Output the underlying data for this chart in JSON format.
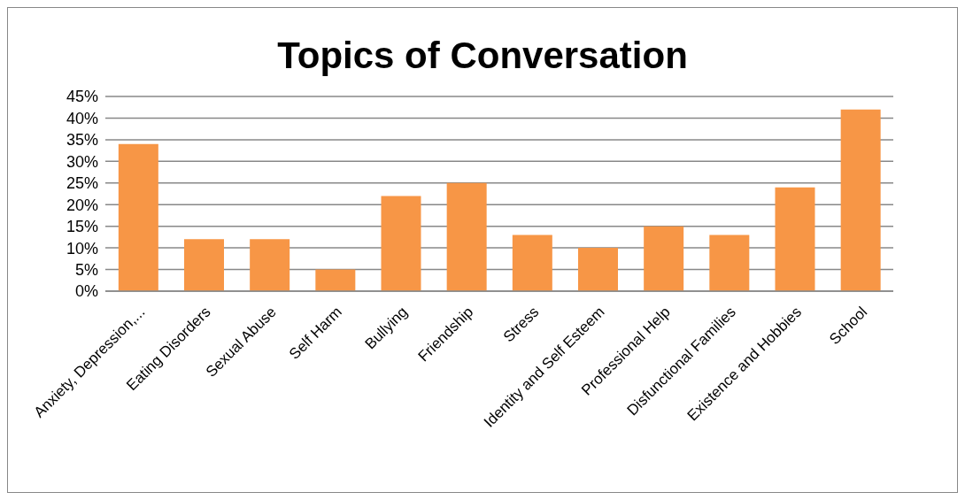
{
  "chart_data": {
    "type": "bar",
    "title": "Topics of Conversation",
    "categories": [
      "Anxiety, Depression,...",
      "Eating Disorders",
      "Sexual Abuse",
      "Self Harm",
      "Bullying",
      "Friendship",
      "Stress",
      "Identity and Self Esteem",
      "Professional Help",
      "Disfunctional Families",
      "Existence and Hobbies",
      "School"
    ],
    "values": [
      34,
      12,
      12,
      5,
      22,
      25,
      13,
      10,
      15,
      13,
      24,
      42
    ],
    "color": "#f79646",
    "ylim": [
      0,
      45
    ],
    "yticks": [
      {
        "value": 0,
        "label": "0%"
      },
      {
        "value": 5,
        "label": "5%"
      },
      {
        "value": 10,
        "label": "10%"
      },
      {
        "value": 15,
        "label": "15%"
      },
      {
        "value": 20,
        "label": "20%"
      },
      {
        "value": 25,
        "label": "25%"
      },
      {
        "value": 30,
        "label": "30%"
      },
      {
        "value": 35,
        "label": "35%"
      },
      {
        "value": 40,
        "label": "40%"
      },
      {
        "value": 45,
        "label": "45%"
      }
    ],
    "grid": "y",
    "legend": false
  }
}
